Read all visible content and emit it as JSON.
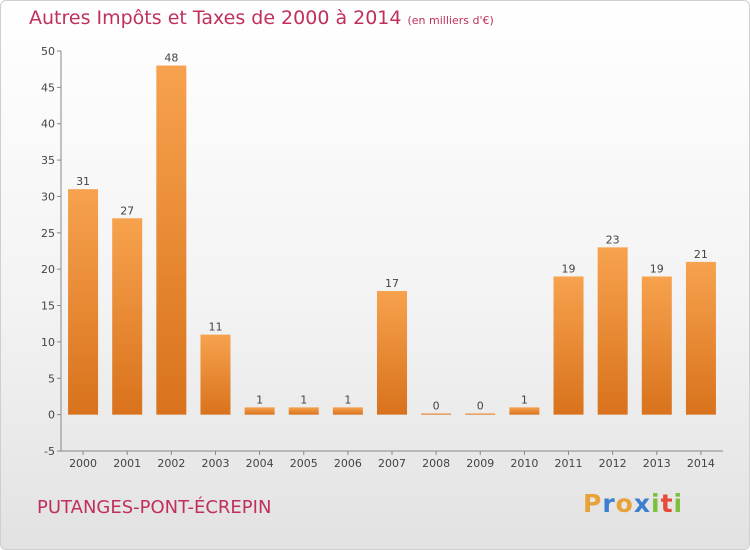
{
  "chart_data": {
    "type": "bar",
    "title": "Autres Impôts et Taxes de 2000 à 2014",
    "unit_note": "(en milliers d'€)",
    "xlabel": "",
    "ylabel": "",
    "categories": [
      "2000",
      "2001",
      "2002",
      "2003",
      "2004",
      "2005",
      "2006",
      "2007",
      "2008",
      "2009",
      "2010",
      "2011",
      "2012",
      "2013",
      "2014"
    ],
    "values": [
      31,
      27,
      48,
      11,
      1,
      1,
      1,
      17,
      0,
      0,
      1,
      19,
      23,
      19,
      21
    ],
    "ylim": [
      -5,
      50
    ],
    "yticks": [
      -5,
      0,
      5,
      10,
      15,
      20,
      25,
      30,
      35,
      40,
      45,
      50
    ],
    "grid": false,
    "bar_color_top": "#f7a24e",
    "bar_color_bottom": "#d9721c"
  },
  "footer": {
    "commune": "PUTANGES-PONT-ÉCREPIN",
    "logo": {
      "letters": [
        "P",
        "r",
        "o",
        "x",
        "i",
        "t",
        "i"
      ],
      "colors": [
        "#e8a23a",
        "#3a7fd0",
        "#e8a23a",
        "#3a7fd0",
        "#7cbf3a",
        "#e84a3a",
        "#7cbf3a"
      ]
    }
  }
}
